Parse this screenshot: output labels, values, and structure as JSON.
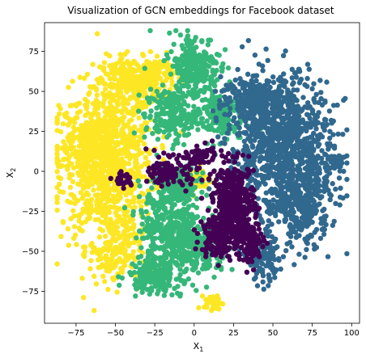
{
  "chart_data": {
    "type": "scatter",
    "title": "Visualization of GCN embeddings for Facebook dataset",
    "xlabel_base": "X",
    "xlabel_sub": "1",
    "ylabel_base": "X",
    "ylabel_sub": "2",
    "xlim": [
      -95,
      105
    ],
    "ylim": [
      -95,
      93
    ],
    "xticks": [
      -75,
      -50,
      -25,
      0,
      25,
      50,
      75,
      100
    ],
    "yticks": [
      -75,
      -50,
      -25,
      0,
      25,
      50,
      75
    ],
    "xtick_labels": [
      "−75",
      "−50",
      "−25",
      "0",
      "25",
      "50",
      "75",
      "100"
    ],
    "ytick_labels": [
      "−75",
      "−50",
      "−25",
      "0",
      "25",
      "50",
      "75"
    ],
    "grid": false,
    "legend": "none",
    "colors": {
      "purple": "#440154",
      "blue": "#31688e",
      "green": "#35b779",
      "yellow": "#fde725"
    },
    "series": [
      {
        "color": "#fde725",
        "clusters": [
          {
            "cx": -55,
            "cy": 5,
            "rx": 27,
            "ry": 45,
            "n": 900
          },
          {
            "cx": -40,
            "cy": 55,
            "rx": 18,
            "ry": 15,
            "n": 260
          },
          {
            "cx": -25,
            "cy": 60,
            "rx": 12,
            "ry": 10,
            "n": 120
          },
          {
            "cx": -70,
            "cy": 15,
            "rx": 15,
            "ry": 15,
            "n": 160
          },
          {
            "cx": -50,
            "cy": -50,
            "rx": 15,
            "ry": 20,
            "n": 180
          },
          {
            "cx": 12,
            "cy": -82,
            "rx": 5,
            "ry": 4,
            "n": 40
          },
          {
            "cx": 2,
            "cy": -5,
            "rx": 8,
            "ry": 8,
            "n": 50
          }
        ]
      },
      {
        "color": "#35b779",
        "clusters": [
          {
            "cx": 0,
            "cy": 65,
            "rx": 15,
            "ry": 20,
            "n": 260
          },
          {
            "cx": -15,
            "cy": 35,
            "rx": 15,
            "ry": 15,
            "n": 200
          },
          {
            "cx": 15,
            "cy": 35,
            "rx": 15,
            "ry": 15,
            "n": 160
          },
          {
            "cx": -15,
            "cy": -35,
            "rx": 18,
            "ry": 25,
            "n": 380
          },
          {
            "cx": 5,
            "cy": -50,
            "rx": 15,
            "ry": 15,
            "n": 180
          },
          {
            "cx": -25,
            "cy": -65,
            "rx": 15,
            "ry": 10,
            "n": 200
          },
          {
            "cx": -10,
            "cy": -10,
            "rx": 12,
            "ry": 12,
            "n": 140
          }
        ]
      },
      {
        "color": "#31688e",
        "clusters": [
          {
            "cx": 55,
            "cy": 15,
            "rx": 30,
            "ry": 40,
            "n": 1000
          },
          {
            "cx": 40,
            "cy": 45,
            "rx": 20,
            "ry": 12,
            "n": 260
          },
          {
            "cx": 70,
            "cy": -20,
            "rx": 15,
            "ry": 25,
            "n": 260
          },
          {
            "cx": 45,
            "cy": -55,
            "rx": 10,
            "ry": 15,
            "n": 120
          },
          {
            "cx": 90,
            "cy": 5,
            "rx": 5,
            "ry": 5,
            "n": 40
          }
        ]
      },
      {
        "color": "#440154",
        "clusters": [
          {
            "cx": 25,
            "cy": -20,
            "rx": 12,
            "ry": 22,
            "n": 420
          },
          {
            "cx": 15,
            "cy": -40,
            "rx": 10,
            "ry": 12,
            "n": 160
          },
          {
            "cx": 35,
            "cy": -45,
            "rx": 8,
            "ry": 12,
            "n": 120
          },
          {
            "cx": -15,
            "cy": 0,
            "rx": 12,
            "ry": 8,
            "n": 120
          },
          {
            "cx": 5,
            "cy": 10,
            "rx": 8,
            "ry": 6,
            "n": 60
          },
          {
            "cx": -45,
            "cy": -5,
            "rx": 6,
            "ry": 5,
            "n": 30
          }
        ]
      }
    ]
  }
}
